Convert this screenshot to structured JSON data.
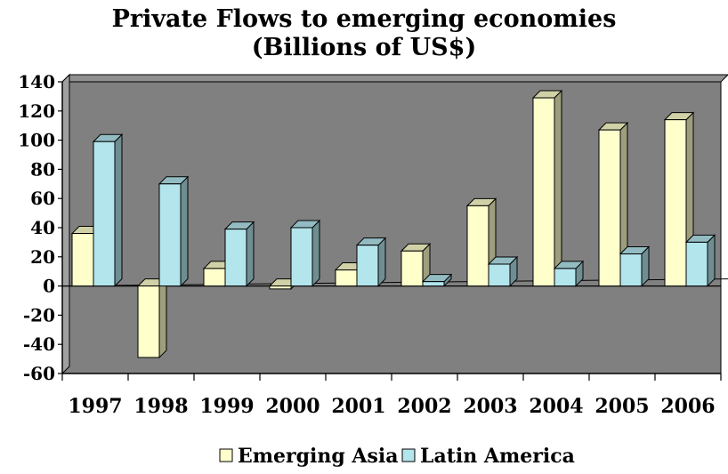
{
  "chart_data": {
    "type": "bar",
    "title": "Private Flows to emerging economies",
    "subtitle": "(Billions of US$)",
    "categories": [
      "1997",
      "1998",
      "1999",
      "2000",
      "2001",
      "2002",
      "2003",
      "2004",
      "2005",
      "2006"
    ],
    "series": [
      {
        "name": "Emerging Asia",
        "values": [
          36,
          -49,
          12,
          -2,
          11,
          24,
          55,
          129,
          107,
          114
        ],
        "color": "#ffffcc"
      },
      {
        "name": "Latin America",
        "values": [
          99,
          70,
          39,
          40,
          28,
          3,
          15,
          12,
          22,
          30
        ],
        "color": "#b3e5ec"
      }
    ],
    "ylim": [
      -60,
      140
    ],
    "yticks": [
      140,
      120,
      100,
      80,
      60,
      40,
      20,
      0,
      -20,
      -40,
      -60
    ],
    "xlabel": "",
    "ylabel": "",
    "grid": false,
    "legend_position": "bottom",
    "plot_background": "#808080"
  }
}
